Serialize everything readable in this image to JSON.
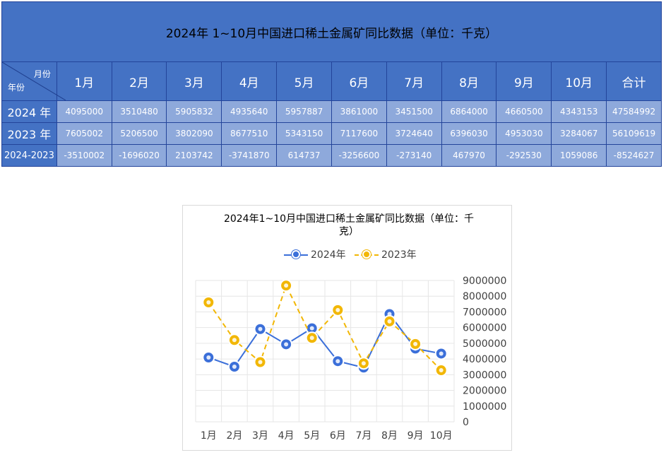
{
  "table": {
    "title": "2024年 1~10月中国进口稀土金属矿同比数据（单位：千克）",
    "corner_month": "月份",
    "corner_year": "年份",
    "headers": [
      "1月",
      "2月",
      "3月",
      "4月",
      "5月",
      "6月",
      "7月",
      "8月",
      "9月",
      "10月",
      "合计"
    ],
    "rows": [
      {
        "label": "2024 年",
        "values": [
          "4095000",
          "3510480",
          "5905832",
          "4935640",
          "5957887",
          "3861000",
          "3451500",
          "6864000",
          "4660500",
          "4343153",
          "47584992"
        ]
      },
      {
        "label": "2023 年",
        "values": [
          "7605002",
          "5206500",
          "3802090",
          "8677510",
          "5343150",
          "7117600",
          "3724640",
          "6396030",
          "4953030",
          "3284067",
          "56109619"
        ]
      },
      {
        "label": "2024-2023",
        "values": [
          "-3510002",
          "-1696020",
          "2103742",
          "-3741870",
          "614737",
          "-3256600",
          "-273140",
          "467970",
          "-292530",
          "1059086",
          "-8524627"
        ]
      }
    ]
  },
  "chart_data": {
    "type": "line",
    "title": "2024年1~10月中国进口稀土金属矿同比数据（单位：千克）",
    "categories": [
      "1月",
      "2月",
      "3月",
      "4月",
      "5月",
      "6月",
      "7月",
      "8月",
      "9月",
      "10月"
    ],
    "series": [
      {
        "name": "2024年",
        "color": "#3b6fd9",
        "line_style": "solid",
        "values": [
          4095000,
          3510480,
          5905832,
          4935640,
          5957887,
          3861000,
          3451500,
          6864000,
          4660500,
          4343153
        ]
      },
      {
        "name": "2023年",
        "color": "#f2b705",
        "line_style": "dashed",
        "values": [
          7605002,
          5206500,
          3802090,
          8677510,
          5343150,
          7117600,
          3724640,
          6396030,
          4953030,
          3284067
        ]
      }
    ],
    "ylim": [
      0,
      9000000
    ],
    "yticks": [
      "0",
      "1000000",
      "2000000",
      "3000000",
      "4000000",
      "5000000",
      "6000000",
      "7000000",
      "8000000",
      "9000000"
    ],
    "y_axis_side": "right",
    "grid": true,
    "legend": "top"
  }
}
